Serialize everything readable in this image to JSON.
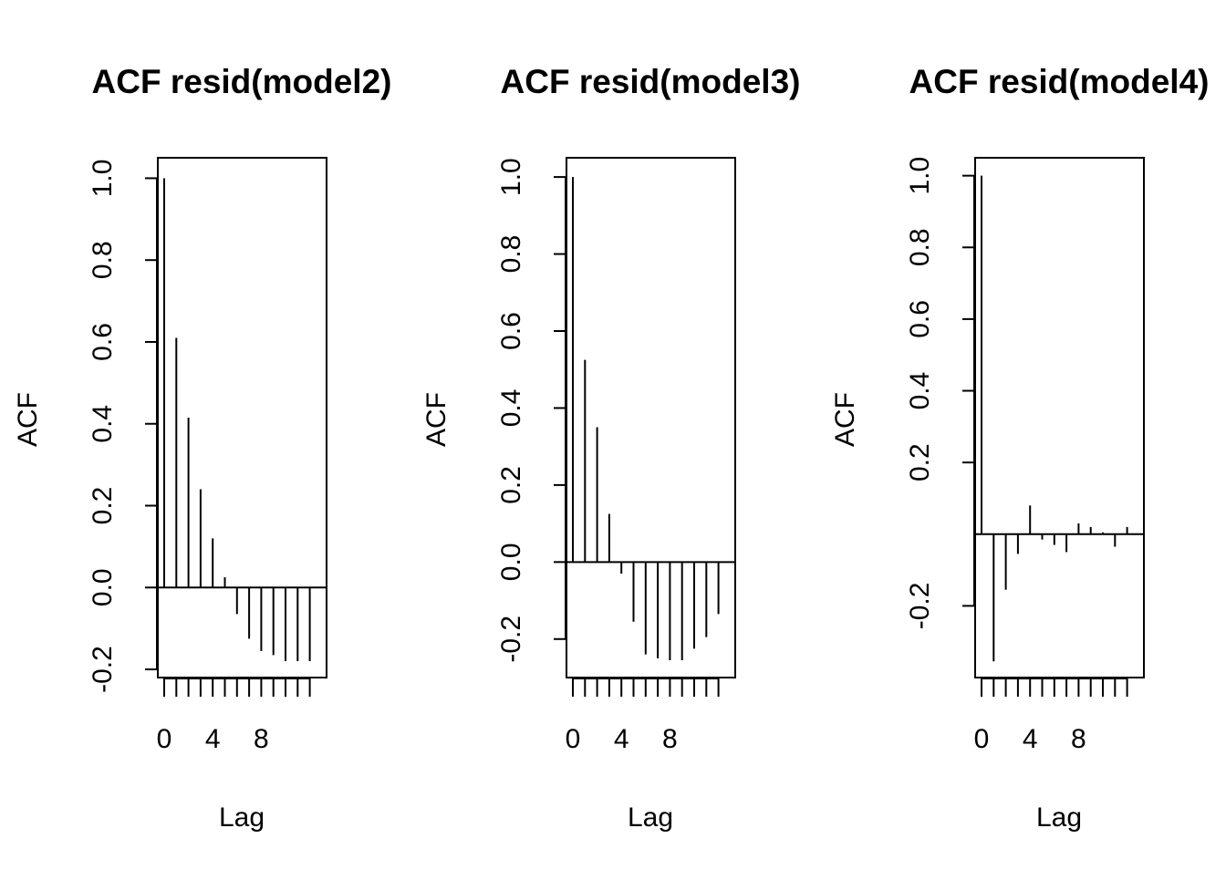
{
  "chart_data": [
    {
      "type": "bar",
      "title": "ACF resid(model2)",
      "xlabel": "Lag",
      "ylabel": "ACF",
      "ylim": [
        -0.22,
        1.05
      ],
      "x_ticks": [
        0,
        4,
        8
      ],
      "y_ticks": [
        -0.2,
        0.0,
        0.2,
        0.4,
        0.6,
        0.8,
        1.0
      ],
      "y_tick_labels": [
        "-0.2",
        "0.0",
        "0.2",
        "0.4",
        "0.6",
        "0.8",
        "1.0"
      ],
      "lags": [
        0,
        1,
        2,
        3,
        4,
        5,
        6,
        7,
        8,
        9,
        10,
        11,
        12
      ],
      "values": [
        1.0,
        0.61,
        0.415,
        0.24,
        0.12,
        0.025,
        -0.065,
        -0.125,
        -0.155,
        -0.165,
        -0.18,
        -0.18,
        -0.18
      ]
    },
    {
      "type": "bar",
      "title": "ACF resid(model3)",
      "xlabel": "Lag",
      "ylabel": "ACF",
      "ylim": [
        -0.3,
        1.05
      ],
      "x_ticks": [
        0,
        4,
        8
      ],
      "y_ticks": [
        -0.2,
        0.0,
        0.2,
        0.4,
        0.6,
        0.8,
        1.0
      ],
      "y_tick_labels": [
        "-0.2",
        "0.0",
        "0.2",
        "0.4",
        "0.6",
        "0.8",
        "1.0"
      ],
      "lags": [
        0,
        1,
        2,
        3,
        4,
        5,
        6,
        7,
        8,
        9,
        10,
        11,
        12
      ],
      "values": [
        1.0,
        0.525,
        0.35,
        0.125,
        -0.03,
        -0.155,
        -0.24,
        -0.25,
        -0.255,
        -0.255,
        -0.225,
        -0.195,
        -0.135
      ]
    },
    {
      "type": "bar",
      "title": "ACF resid(model4)",
      "xlabel": "Lag",
      "ylabel": "ACF",
      "ylim": [
        -0.4,
        1.05
      ],
      "x_ticks": [
        0,
        4,
        8
      ],
      "y_ticks": [
        -0.2,
        0.2,
        0.4,
        0.6,
        0.8,
        1.0
      ],
      "y_tick_labels": [
        "-0.2",
        "0.2",
        "0.4",
        "0.6",
        "0.8",
        "1.0"
      ],
      "lags": [
        0,
        1,
        2,
        3,
        4,
        5,
        6,
        7,
        8,
        9,
        10,
        11,
        12
      ],
      "values": [
        1.0,
        -0.355,
        -0.155,
        -0.055,
        0.08,
        -0.015,
        -0.03,
        -0.05,
        0.03,
        0.02,
        0.005,
        -0.035,
        0.02
      ]
    }
  ]
}
